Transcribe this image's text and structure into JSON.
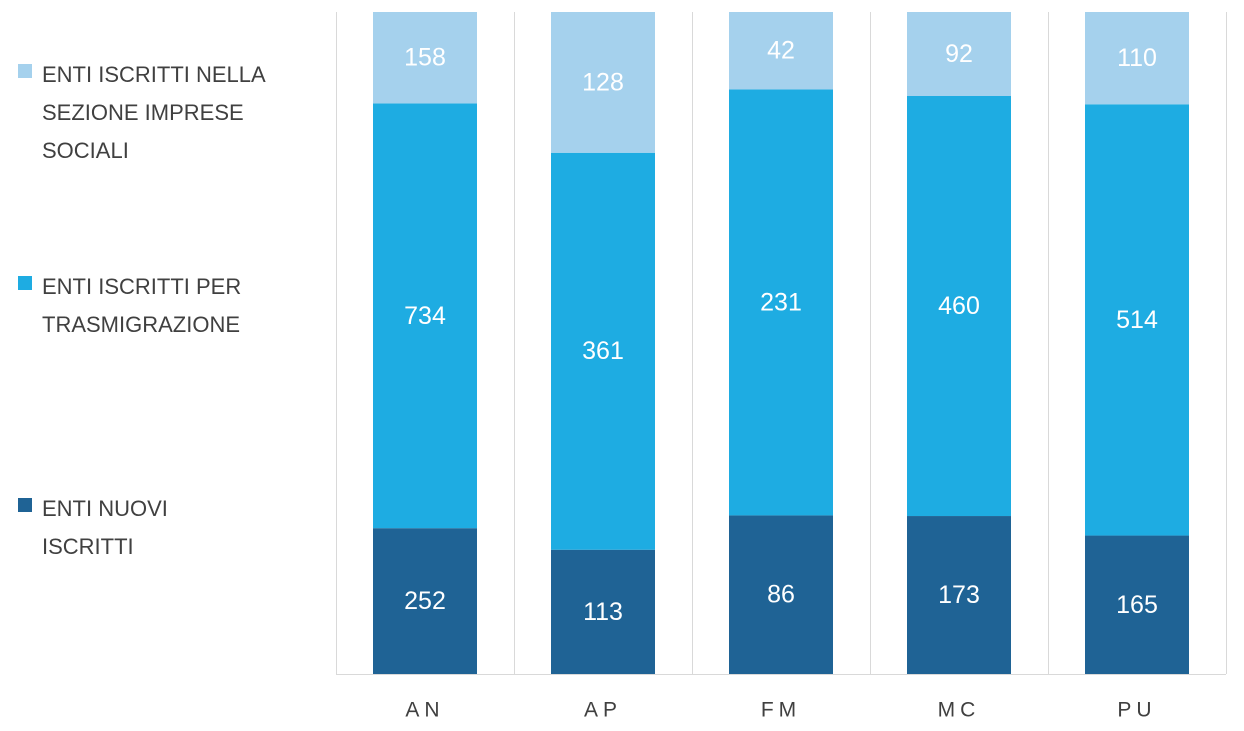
{
  "chart_data": {
    "type": "bar",
    "stacked": true,
    "orientation": "vertical",
    "normalized": true,
    "categories": [
      "AN",
      "AP",
      "FM",
      "MC",
      "PU"
    ],
    "series": [
      {
        "name": "ENTI NUOVI ISCRITTI",
        "values": [
          252,
          113,
          86,
          173,
          165
        ],
        "color": "#1f6395"
      },
      {
        "name": "ENTI ISCRITTI PER TRASMIGRAZIONE",
        "values": [
          734,
          361,
          231,
          460,
          514
        ],
        "color": "#1eace2"
      },
      {
        "name": "ENTI ISCRITTI NELLA SEZIONE IMPRESE SOCIALI",
        "values": [
          158,
          128,
          42,
          92,
          110
        ],
        "color": "#a5d1ed"
      }
    ],
    "legend_position": "left",
    "legend_labels_wrapped": [
      "ENTI NUOVI\nISCRITTI",
      "ENTI ISCRITTI PER\nTRASMIGRAZIONE",
      "ENTI ISCRITTI NELLA\nSEZIONE IMPRESE\nSOCIALI"
    ],
    "gridlines": "vertical-separators",
    "colors": {
      "label_text": "#ffffff",
      "axis_text": "#404040",
      "grid": "#d9d9d9"
    }
  }
}
